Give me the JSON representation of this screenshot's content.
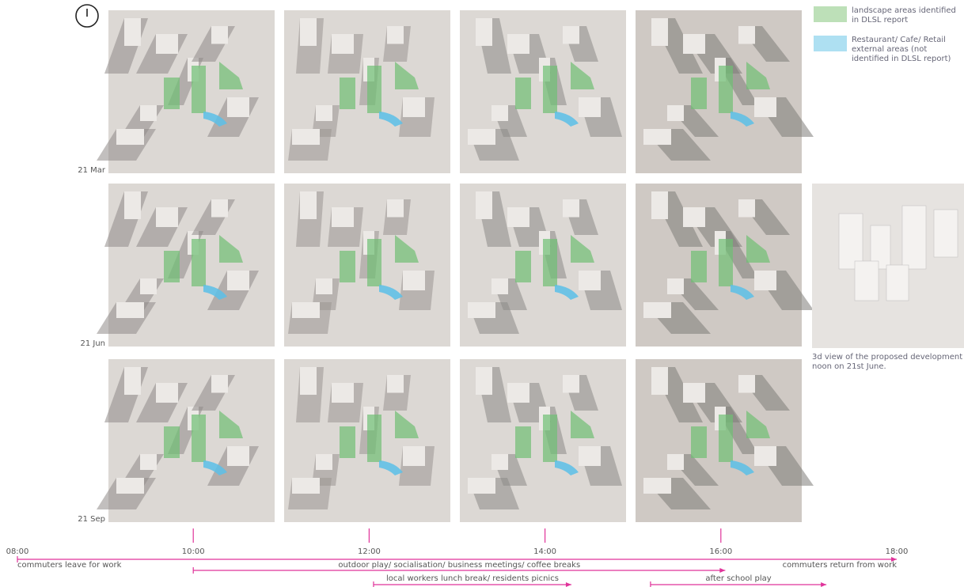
{
  "rows": [
    "21 Mar",
    "21 Jun",
    "21 Sep"
  ],
  "legend": [
    {
      "label": "landscape areas identified in DLSL report",
      "color": "#bde0b8"
    },
    {
      "label": "Restaurant/ Cafe/ Retail external areas (not identified in DLSL report)",
      "color": "#aee0f2"
    }
  ],
  "side_view": {
    "caption_1": "3d view of the proposed development at",
    "caption_2": "noon on 21st June."
  },
  "timeline": {
    "ticks": [
      {
        "value": 8,
        "label": "08:00"
      },
      {
        "value": 10,
        "label": "10:00"
      },
      {
        "value": 12,
        "label": "12:00"
      },
      {
        "value": 14,
        "label": "14:00"
      },
      {
        "value": 16,
        "label": "16:00"
      },
      {
        "value": 18,
        "label": "18:00"
      }
    ],
    "color": "#e0339a",
    "activities": [
      {
        "labels": [
          "commuters leave for work",
          "commuters return from work"
        ],
        "start": 8,
        "end": 18
      },
      {
        "labels": [
          "outdoor play/ socialisation/ business meetings/ coffee breaks"
        ],
        "start": 10,
        "end": 16.05
      },
      {
        "labels": [
          "local workers lunch break/ residents picnics"
        ],
        "start": 12.05,
        "end": 14.3
      },
      {
        "labels": [
          "after school play"
        ],
        "start": 15.2,
        "end": 17.2
      }
    ]
  }
}
